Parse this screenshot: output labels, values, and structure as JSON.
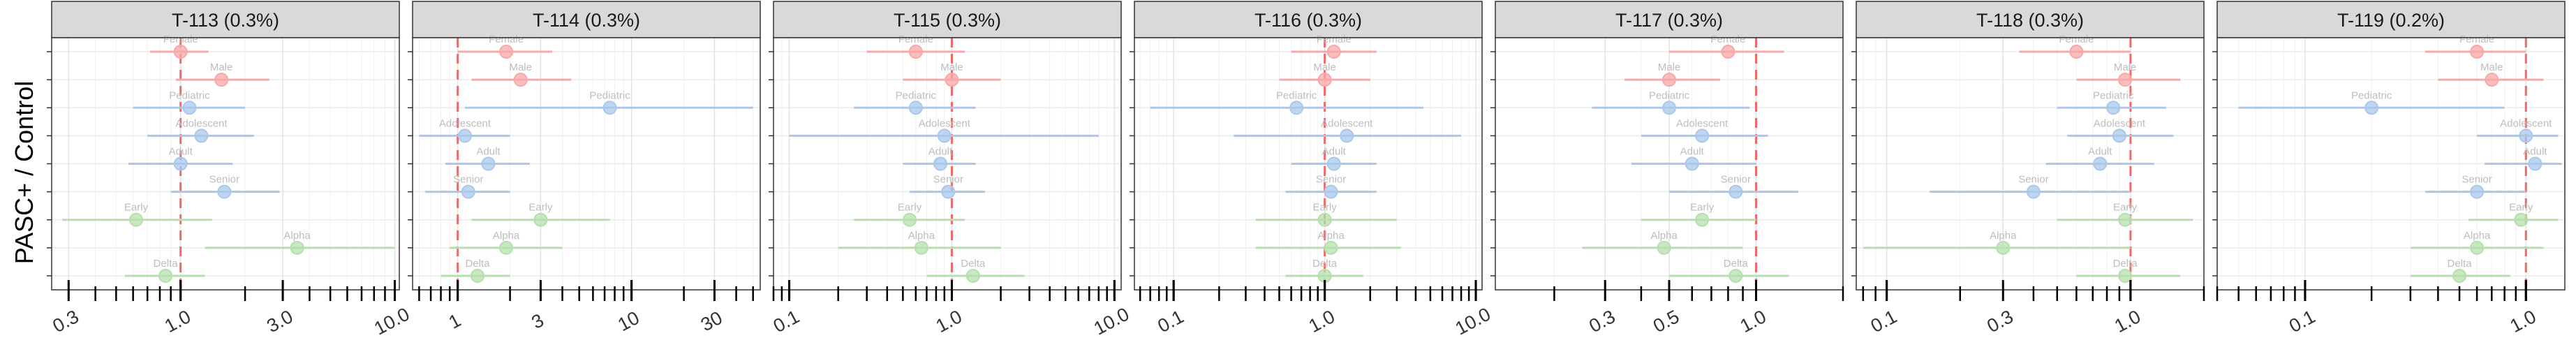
{
  "y_axis_title": "PASC+ / Control",
  "colors": {
    "sex": "#f8a8a8",
    "age": "#a9c8ec",
    "variant": "#b5e0ae",
    "reference_line": "#f06a6a",
    "strip_fill": "#d9d9d9"
  },
  "chart_data": [
    {
      "type": "scatter",
      "title": "T-113 (0.3%)",
      "scale": "log",
      "xlim": [
        0.25,
        10.5
      ],
      "ticks": [
        0.3,
        1.0,
        3.0,
        10.0
      ],
      "tick_labels": [
        "0.3",
        "1.0",
        "3.0",
        "10.0"
      ],
      "grid": true,
      "rows": [
        {
          "label": "Female",
          "group": "sex",
          "estimate": 1.0,
          "lower": 0.72,
          "upper": 1.35
        },
        {
          "label": "Male",
          "group": "sex",
          "estimate": 1.55,
          "lower": 0.95,
          "upper": 2.6
        },
        {
          "label": "Pediatric",
          "group": "age",
          "estimate": 1.1,
          "lower": 0.6,
          "upper": 2.0
        },
        {
          "label": "Adolescent",
          "group": "age",
          "estimate": 1.25,
          "lower": 0.7,
          "upper": 2.2
        },
        {
          "label": "Adult",
          "group": "age",
          "estimate": 1.0,
          "lower": 0.57,
          "upper": 1.75
        },
        {
          "label": "Senior",
          "group": "age",
          "estimate": 1.6,
          "lower": 0.9,
          "upper": 2.9
        },
        {
          "label": "Early",
          "group": "variant",
          "estimate": 0.62,
          "lower": 0.28,
          "upper": 1.4
        },
        {
          "label": "Alpha",
          "group": "variant",
          "estimate": 3.5,
          "lower": 1.3,
          "upper": 10.0
        },
        {
          "label": "Delta",
          "group": "variant",
          "estimate": 0.85,
          "lower": 0.55,
          "upper": 1.3
        }
      ]
    },
    {
      "type": "scatter",
      "title": "T-114 (0.3%)",
      "scale": "log",
      "xlim": [
        0.55,
        55
      ],
      "ticks": [
        1,
        3,
        10,
        30
      ],
      "tick_labels": [
        "1",
        "3",
        "10",
        "30"
      ],
      "grid": true,
      "rows": [
        {
          "label": "Female",
          "group": "sex",
          "estimate": 1.9,
          "lower": 1.0,
          "upper": 3.5
        },
        {
          "label": "Male",
          "group": "sex",
          "estimate": 2.3,
          "lower": 1.2,
          "upper": 4.5
        },
        {
          "label": "Pediatric",
          "group": "age",
          "estimate": 7.5,
          "lower": 1.1,
          "upper": 50
        },
        {
          "label": "Adolescent",
          "group": "age",
          "estimate": 1.1,
          "lower": 0.6,
          "upper": 2.0
        },
        {
          "label": "Adult",
          "group": "age",
          "estimate": 1.5,
          "lower": 0.85,
          "upper": 2.6
        },
        {
          "label": "Senior",
          "group": "age",
          "estimate": 1.15,
          "lower": 0.65,
          "upper": 2.0
        },
        {
          "label": "Early",
          "group": "variant",
          "estimate": 3.0,
          "lower": 1.2,
          "upper": 7.5
        },
        {
          "label": "Alpha",
          "group": "variant",
          "estimate": 1.9,
          "lower": 0.9,
          "upper": 4.0
        },
        {
          "label": "Delta",
          "group": "variant",
          "estimate": 1.3,
          "lower": 0.8,
          "upper": 2.0
        }
      ]
    },
    {
      "type": "scatter",
      "title": "T-115 (0.3%)",
      "scale": "log",
      "xlim": [
        0.08,
        11
      ],
      "ticks": [
        0.1,
        1.0,
        10.0
      ],
      "tick_labels": [
        "0.1",
        "1.0",
        "10.0"
      ],
      "grid": true,
      "rows": [
        {
          "label": "Female",
          "group": "sex",
          "estimate": 0.6,
          "lower": 0.3,
          "upper": 1.2
        },
        {
          "label": "Male",
          "group": "sex",
          "estimate": 1.0,
          "lower": 0.5,
          "upper": 2.0
        },
        {
          "label": "Pediatric",
          "group": "age",
          "estimate": 0.6,
          "lower": 0.25,
          "upper": 1.4
        },
        {
          "label": "Adolescent",
          "group": "age",
          "estimate": 0.9,
          "lower": 0.1,
          "upper": 8.0
        },
        {
          "label": "Adult",
          "group": "age",
          "estimate": 0.85,
          "lower": 0.5,
          "upper": 1.4
        },
        {
          "label": "Senior",
          "group": "age",
          "estimate": 0.95,
          "lower": 0.55,
          "upper": 1.6
        },
        {
          "label": "Early",
          "group": "variant",
          "estimate": 0.55,
          "lower": 0.25,
          "upper": 1.2
        },
        {
          "label": "Alpha",
          "group": "variant",
          "estimate": 0.65,
          "lower": 0.2,
          "upper": 2.0
        },
        {
          "label": "Delta",
          "group": "variant",
          "estimate": 1.35,
          "lower": 0.7,
          "upper": 2.8
        }
      ]
    },
    {
      "type": "scatter",
      "title": "T-116 (0.3%)",
      "scale": "log",
      "xlim": [
        0.055,
        11
      ],
      "ticks": [
        0.1,
        1.0,
        10.0
      ],
      "tick_labels": [
        "0.1",
        "1.0",
        "10.0"
      ],
      "grid": true,
      "rows": [
        {
          "label": "Female",
          "group": "sex",
          "estimate": 1.15,
          "lower": 0.6,
          "upper": 2.2
        },
        {
          "label": "Male",
          "group": "sex",
          "estimate": 1.0,
          "lower": 0.5,
          "upper": 2.0
        },
        {
          "label": "Pediatric",
          "group": "age",
          "estimate": 0.65,
          "lower": 0.07,
          "upper": 4.5
        },
        {
          "label": "Adolescent",
          "group": "age",
          "estimate": 1.4,
          "lower": 0.25,
          "upper": 8.0
        },
        {
          "label": "Adult",
          "group": "age",
          "estimate": 1.15,
          "lower": 0.6,
          "upper": 2.2
        },
        {
          "label": "Senior",
          "group": "age",
          "estimate": 1.1,
          "lower": 0.55,
          "upper": 2.2
        },
        {
          "label": "Early",
          "group": "variant",
          "estimate": 1.0,
          "lower": 0.35,
          "upper": 3.0
        },
        {
          "label": "Alpha",
          "group": "variant",
          "estimate": 1.1,
          "lower": 0.35,
          "upper": 3.2
        },
        {
          "label": "Delta",
          "group": "variant",
          "estimate": 1.0,
          "lower": 0.55,
          "upper": 1.8
        }
      ]
    },
    {
      "type": "scatter",
      "title": "T-117 (0.3%)",
      "scale": "log",
      "xlim": [
        0.125,
        2.0
      ],
      "ticks": [
        0.3,
        0.5,
        1.0
      ],
      "tick_labels": [
        "0.3",
        "0.5",
        "1.0"
      ],
      "grid": true,
      "rows": [
        {
          "label": "Female",
          "group": "sex",
          "estimate": 0.8,
          "lower": 0.5,
          "upper": 1.25
        },
        {
          "label": "Male",
          "group": "sex",
          "estimate": 0.5,
          "lower": 0.35,
          "upper": 0.75
        },
        {
          "label": "Pediatric",
          "group": "age",
          "estimate": 0.5,
          "lower": 0.27,
          "upper": 0.95
        },
        {
          "label": "Adolescent",
          "group": "age",
          "estimate": 0.65,
          "lower": 0.4,
          "upper": 1.1
        },
        {
          "label": "Adult",
          "group": "age",
          "estimate": 0.6,
          "lower": 0.37,
          "upper": 1.0
        },
        {
          "label": "Senior",
          "group": "age",
          "estimate": 0.85,
          "lower": 0.5,
          "upper": 1.4
        },
        {
          "label": "Early",
          "group": "variant",
          "estimate": 0.65,
          "lower": 0.4,
          "upper": 1.0
        },
        {
          "label": "Alpha",
          "group": "variant",
          "estimate": 0.48,
          "lower": 0.25,
          "upper": 0.9
        },
        {
          "label": "Delta",
          "group": "variant",
          "estimate": 0.85,
          "lower": 0.5,
          "upper": 1.3
        }
      ]
    },
    {
      "type": "scatter",
      "title": "T-118 (0.3%)",
      "scale": "log",
      "xlim": [
        0.075,
        2.0
      ],
      "ticks": [
        0.1,
        0.3,
        1.0
      ],
      "tick_labels": [
        "0.1",
        "0.3",
        "1.0"
      ],
      "grid": true,
      "rows": [
        {
          "label": "Female",
          "group": "sex",
          "estimate": 0.6,
          "lower": 0.35,
          "upper": 1.0
        },
        {
          "label": "Male",
          "group": "sex",
          "estimate": 0.95,
          "lower": 0.6,
          "upper": 1.6
        },
        {
          "label": "Pediatric",
          "group": "age",
          "estimate": 0.85,
          "lower": 0.5,
          "upper": 1.4
        },
        {
          "label": "Adolescent",
          "group": "age",
          "estimate": 0.9,
          "lower": 0.55,
          "upper": 1.5
        },
        {
          "label": "Adult",
          "group": "age",
          "estimate": 0.75,
          "lower": 0.45,
          "upper": 1.25
        },
        {
          "label": "Senior",
          "group": "age",
          "estimate": 0.4,
          "lower": 0.15,
          "upper": 1.0
        },
        {
          "label": "Early",
          "group": "variant",
          "estimate": 0.95,
          "lower": 0.5,
          "upper": 1.8
        },
        {
          "label": "Alpha",
          "group": "variant",
          "estimate": 0.3,
          "lower": 0.08,
          "upper": 1.0
        },
        {
          "label": "Delta",
          "group": "variant",
          "estimate": 0.95,
          "lower": 0.6,
          "upper": 1.6
        }
      ]
    },
    {
      "type": "scatter",
      "title": "T-119 (0.2%)",
      "scale": "log",
      "xlim": [
        0.04,
        1.5
      ],
      "ticks": [
        0.1,
        1.0
      ],
      "tick_labels": [
        "0.1",
        "1.0"
      ],
      "grid": true,
      "rows": [
        {
          "label": "Female",
          "group": "sex",
          "estimate": 0.6,
          "lower": 0.35,
          "upper": 1.0
        },
        {
          "label": "Male",
          "group": "sex",
          "estimate": 0.7,
          "lower": 0.4,
          "upper": 1.2
        },
        {
          "label": "Pediatric",
          "group": "age",
          "estimate": 0.2,
          "lower": 0.05,
          "upper": 0.8
        },
        {
          "label": "Adolescent",
          "group": "age",
          "estimate": 1.0,
          "lower": 0.6,
          "upper": 1.4
        },
        {
          "label": "Adult",
          "group": "age",
          "estimate": 1.1,
          "lower": 0.65,
          "upper": 1.45
        },
        {
          "label": "Senior",
          "group": "age",
          "estimate": 0.6,
          "lower": 0.35,
          "upper": 1.0
        },
        {
          "label": "Early",
          "group": "variant",
          "estimate": 0.95,
          "lower": 0.55,
          "upper": 1.4
        },
        {
          "label": "Alpha",
          "group": "variant",
          "estimate": 0.6,
          "lower": 0.3,
          "upper": 1.2
        },
        {
          "label": "Delta",
          "group": "variant",
          "estimate": 0.5,
          "lower": 0.3,
          "upper": 0.85
        }
      ]
    }
  ]
}
